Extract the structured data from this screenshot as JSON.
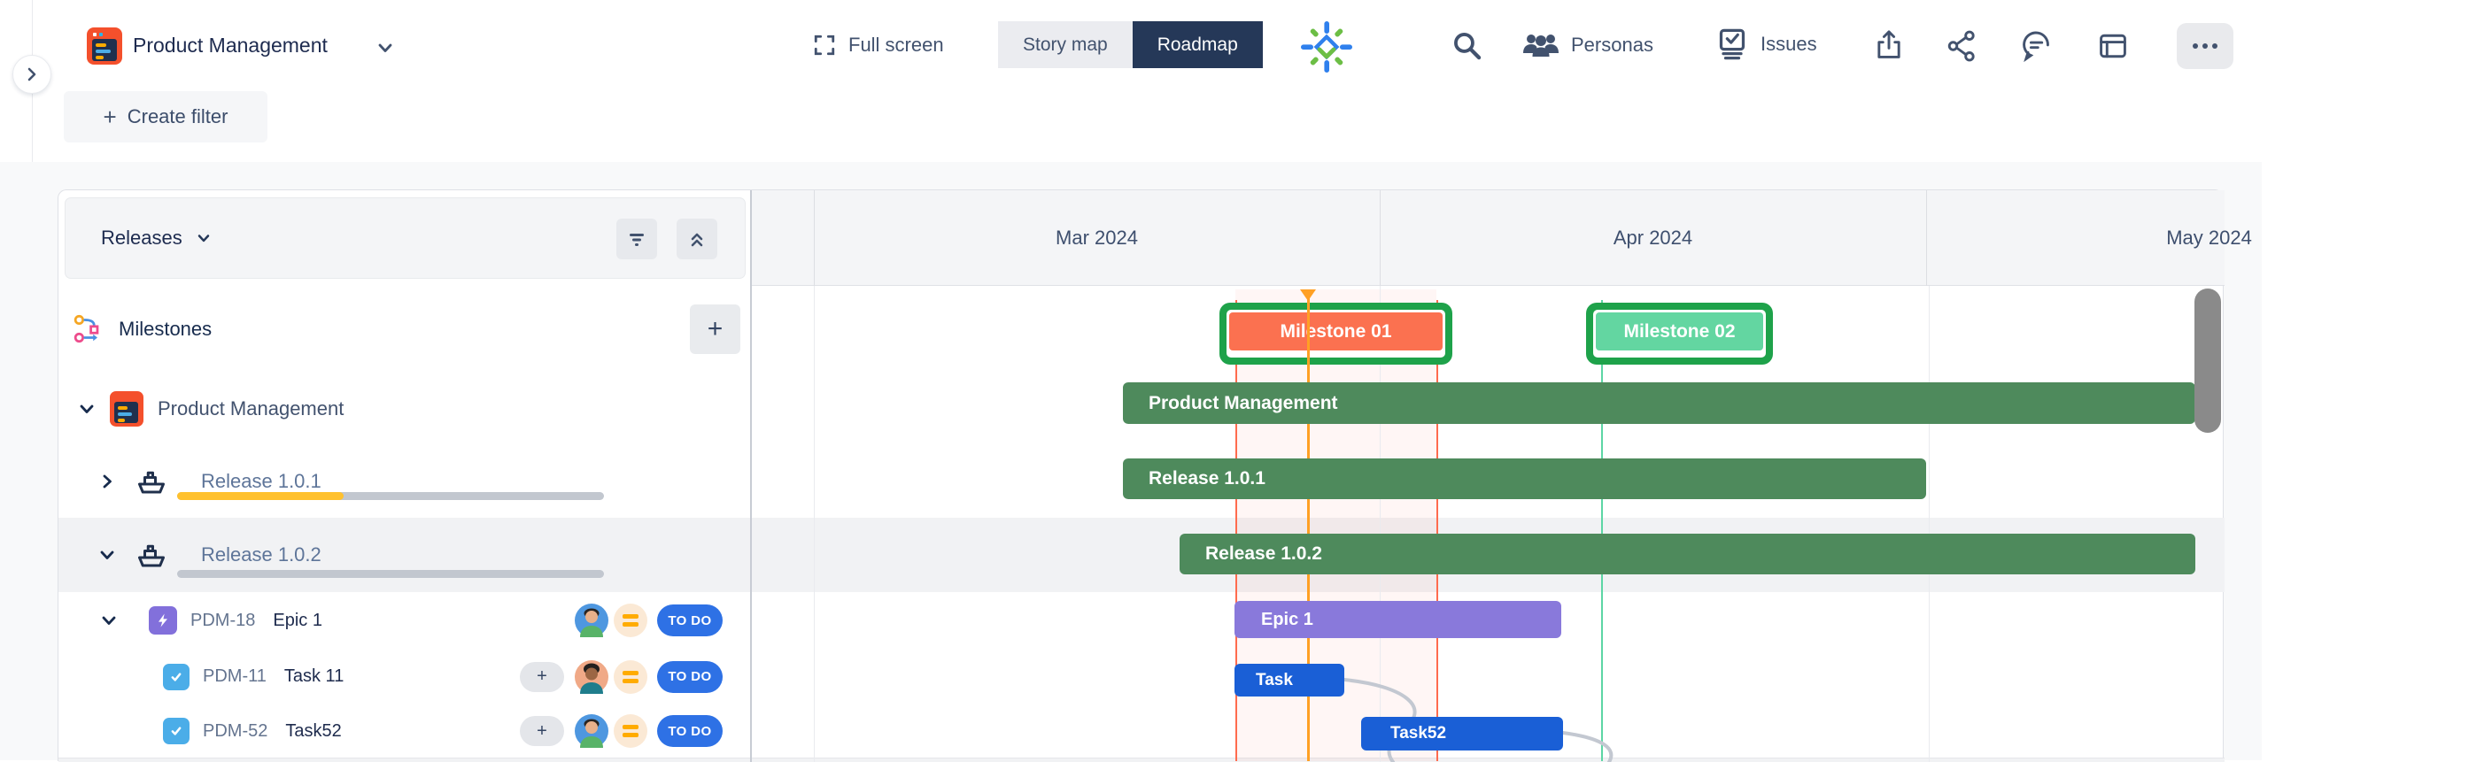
{
  "header": {
    "project_title": "Product Management",
    "fullscreen_label": "Full screen",
    "story_map_label": "Story map",
    "roadmap_label": "Roadmap",
    "personas_label": "Personas",
    "issues_label": "Issues",
    "icons": [
      "collapse-chevron-icon",
      "app-logo-icon",
      "project-dropdown-chevron-icon",
      "fullscreen-icon",
      "brand-star-icon",
      "search-icon",
      "personas-icon",
      "issues-icon",
      "export-icon",
      "share-icon",
      "feedback-icon",
      "card-view-icon",
      "more-dots-icon"
    ]
  },
  "toolbar": {
    "create_filter_label": "Create filter",
    "plus_glyph": "+"
  },
  "left_panel": {
    "grouping_label": "Releases",
    "milestones_label": "Milestones",
    "add_glyph": "+",
    "project_label": "Product Management",
    "releases": [
      {
        "name": "Release 1.0.1",
        "progress_pct": 39,
        "expanded": false
      },
      {
        "name": "Release 1.0.2",
        "progress_pct": 0,
        "expanded": true
      }
    ],
    "issues": [
      {
        "key": "PDM-18",
        "summary": "Epic 1",
        "type": "epic",
        "status": "TO DO"
      },
      {
        "key": "PDM-11",
        "summary": "Task 11",
        "type": "task",
        "status": "TO DO",
        "add_glyph": "+"
      },
      {
        "key": "PDM-52",
        "summary": "Task52",
        "type": "task",
        "status": "TO DO",
        "add_glyph": "+"
      }
    ]
  },
  "timeline": {
    "months": [
      "Mar 2024",
      "Apr 2024",
      "May 2024"
    ],
    "milestones": [
      {
        "label": "Milestone 01",
        "fill": "#FB7150"
      },
      {
        "label": "Milestone 02",
        "fill": "#63D6A1"
      }
    ],
    "bars": [
      {
        "label": "Product Management",
        "color": "#4E8A5C"
      },
      {
        "label": "Release 1.0.1",
        "color": "#4E8A5C"
      },
      {
        "label": "Release 1.0.2",
        "color": "#4E8A5C"
      },
      {
        "label": "Epic 1",
        "color": "#8979DB"
      },
      {
        "label": "Task",
        "color": "#1A5FD6"
      },
      {
        "label": "Task52",
        "color": "#1A5FD6"
      }
    ],
    "colors": {
      "milestone_border_green": "#1EA24A",
      "marker_orange": "#FFA024",
      "line_red": "#FF6B4E",
      "line_teal": "#5CD6A4",
      "status_badge_blue": "#2E71E5",
      "priority_orange": "#FFAB00",
      "progress_yellow": "#FFC12E"
    }
  }
}
